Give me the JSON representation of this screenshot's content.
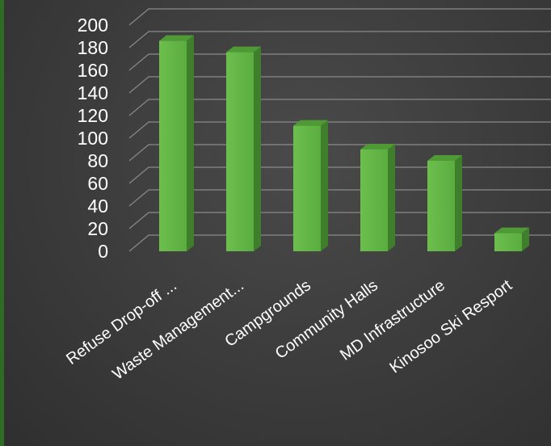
{
  "chart_data": {
    "type": "bar",
    "title": "",
    "xlabel": "",
    "ylabel": "",
    "categories": [
      "Refuse Drop-off ...",
      "Waste Management...",
      "Campgrounds",
      "Community Halls",
      "MD Infrastructure",
      "Kinosoo Ski Resport"
    ],
    "values": [
      186,
      176,
      111,
      90,
      80,
      16
    ],
    "ylim": [
      0,
      200
    ],
    "yticks": [
      "0",
      "20",
      "40",
      "60",
      "80",
      "100",
      "120",
      "140",
      "160",
      "180",
      "200"
    ],
    "grid": true,
    "legend": "none",
    "three_d": true,
    "colors": {
      "bar_front": "#5aad3f",
      "bar_front_light": "#6cbf4d",
      "bar_side": "#3f7e2b",
      "bar_top": "#4f9a37",
      "grid": "#8a8a8a",
      "text": "#ffffff",
      "accent": "#2f6b22"
    }
  }
}
